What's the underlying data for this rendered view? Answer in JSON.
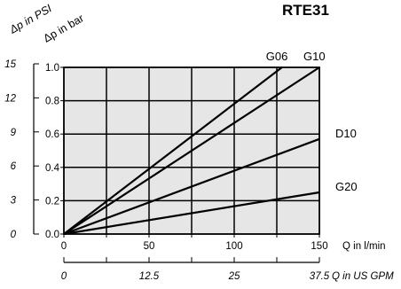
{
  "chart_data": {
    "type": "line",
    "title": "RTE31",
    "ylabel_bar": "Δp in bar",
    "ylabel_psi": "Δp in PSI",
    "xlabel": "Q in l/min",
    "xlabel_secondary": "Q in US GPM",
    "xlim": [
      0,
      150
    ],
    "ylim": [
      0,
      1.0
    ],
    "x_ticks": [
      "0",
      "50",
      "100",
      "150"
    ],
    "y_ticks": [
      "0.0",
      "0.2",
      "0.4",
      "0.6",
      "0.8",
      "1.0"
    ],
    "psi_ticks": [
      "0",
      "3",
      "6",
      "9",
      "12",
      "15"
    ],
    "gpm_ticks": [
      "0",
      "12.5",
      "25",
      "37.5"
    ],
    "grid": true,
    "plot_background": "#e6e6e6",
    "series": [
      {
        "name": "G06",
        "x": [
          0,
          128
        ],
        "y": [
          0,
          1.0
        ]
      },
      {
        "name": "G10",
        "x": [
          0,
          150
        ],
        "y": [
          0,
          1.0
        ]
      },
      {
        "name": "D10",
        "x": [
          0,
          150
        ],
        "y": [
          0,
          0.57
        ]
      },
      {
        "name": "G20",
        "x": [
          0,
          150
        ],
        "y": [
          0,
          0.25
        ]
      }
    ]
  }
}
